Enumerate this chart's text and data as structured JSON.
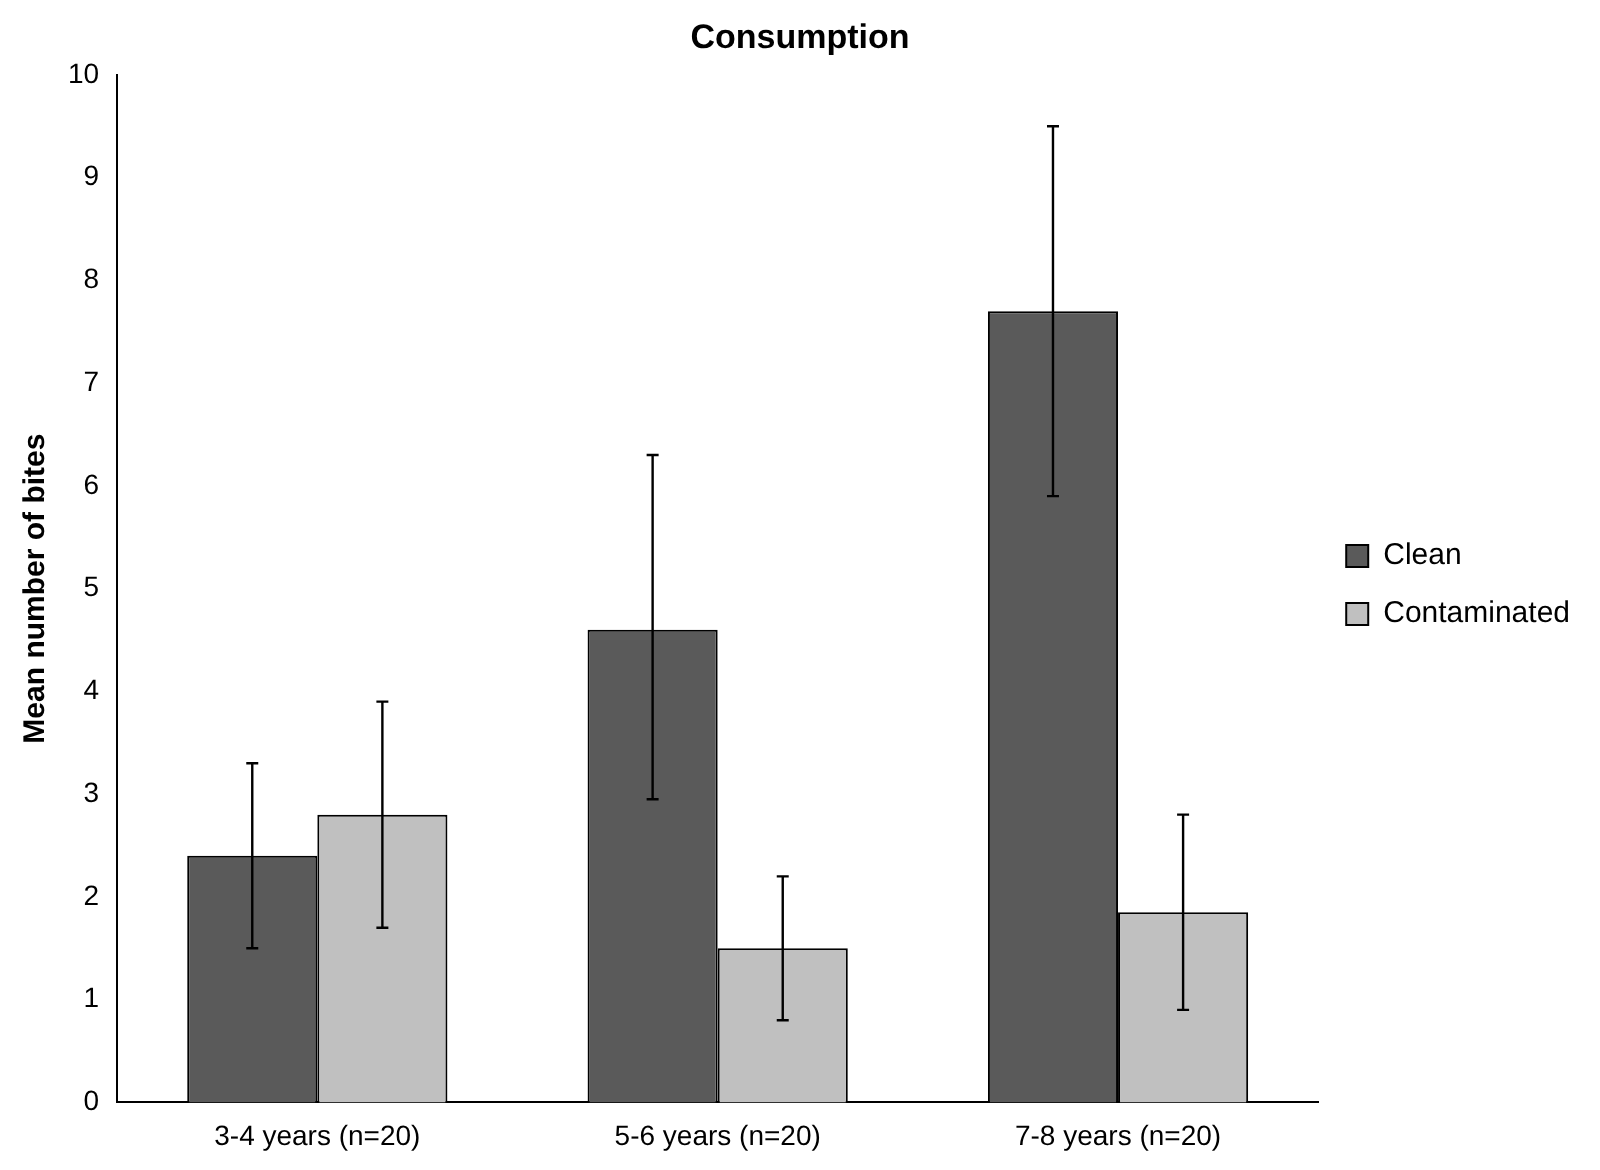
{
  "chart_data": {
    "type": "bar",
    "title": "Consumption",
    "ylabel": "Mean number of bites",
    "categories": [
      "3-4 years (n=20)",
      "5-6 years (n=20)",
      "7-8 years (n=20)"
    ],
    "series": [
      {
        "name": "Clean",
        "color": "#5a5a5a",
        "values": [
          2.4,
          4.6,
          7.7
        ],
        "errors": [
          [
            1.5,
            3.3
          ],
          [
            2.95,
            6.3
          ],
          [
            5.9,
            9.5
          ]
        ]
      },
      {
        "name": "Contaminated",
        "color": "#c0c0c0",
        "values": [
          2.8,
          1.5,
          1.85
        ],
        "errors": [
          [
            1.7,
            3.9
          ],
          [
            0.8,
            2.2
          ],
          [
            0.9,
            2.8
          ]
        ]
      }
    ],
    "ylim": [
      0,
      10
    ],
    "yticks": [
      0,
      1,
      2,
      3,
      4,
      5,
      6,
      7,
      8,
      9,
      10
    ],
    "grid": false,
    "legend": "right"
  }
}
